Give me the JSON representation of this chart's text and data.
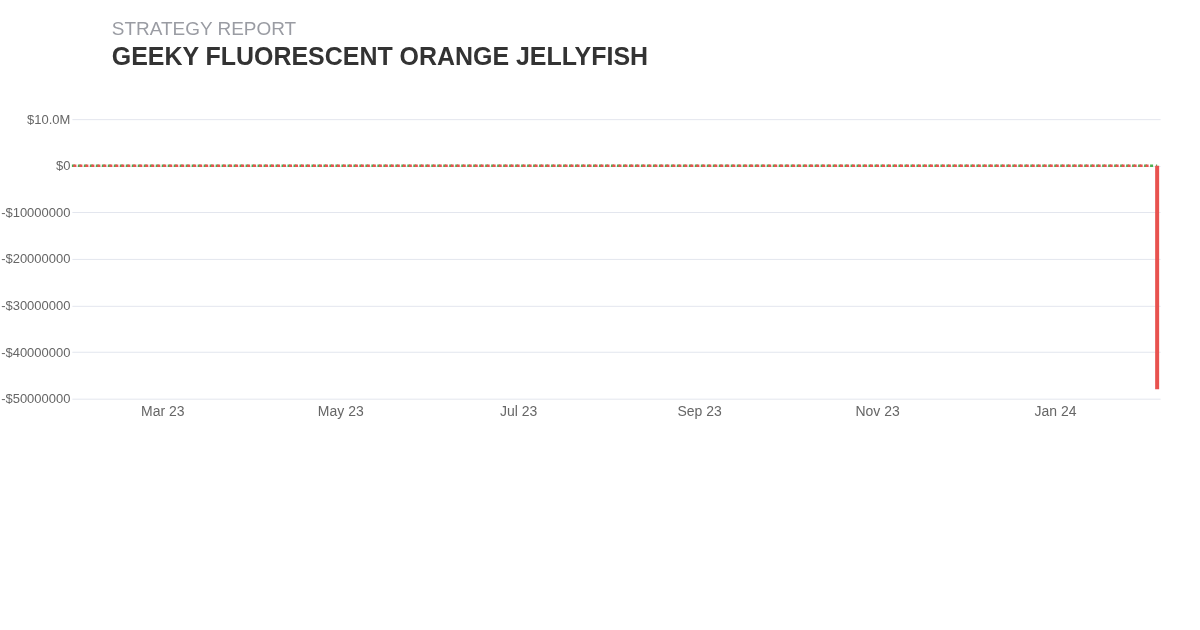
{
  "chart_data": {
    "type": "line",
    "title": "GEEKY FLUORESCENT ORANGE JELLYFISH",
    "subtitle": "STRATEGY REPORT",
    "xlim": [
      "2023-01-29",
      "2024-02-06"
    ],
    "xticks": [
      {
        "value": "2023-03-01",
        "label": "Mar 23"
      },
      {
        "value": "2023-05-01",
        "label": "May 23"
      },
      {
        "value": "2023-07-01",
        "label": "Jul 23"
      },
      {
        "value": "2023-09-01",
        "label": "Sep 23"
      },
      {
        "value": "2023-11-01",
        "label": "Nov 23"
      },
      {
        "value": "2024-01-01",
        "label": "Jan 24"
      }
    ],
    "ylim": [
      -50000000,
      10000000
    ],
    "yticks": [
      {
        "value": 10000000,
        "label": "$10.0M"
      },
      {
        "value": 0,
        "label": "$0"
      },
      {
        "value": -10000000,
        "label": "-$10000000"
      },
      {
        "value": -20000000,
        "label": "-$20000000"
      },
      {
        "value": -30000000,
        "label": "-$30000000"
      },
      {
        "value": -40000000,
        "label": "-$40000000"
      },
      {
        "value": -50000000,
        "label": "-$50000000"
      }
    ],
    "grid": "y",
    "marker": "none",
    "line_style": "dotted",
    "series": [
      {
        "color": "#4caf50",
        "x": [
          "2023-01-29",
          "2024-02-05"
        ],
        "values": [
          0,
          0
        ]
      },
      {
        "color": "#e8524f",
        "x": [
          "2023-01-29",
          "2024-02-03"
        ],
        "values": [
          0,
          0
        ]
      },
      {
        "type": "bar",
        "color": "#e8524f",
        "x": [
          "2024-02-05"
        ],
        "values": [
          -48000000
        ]
      }
    ]
  }
}
